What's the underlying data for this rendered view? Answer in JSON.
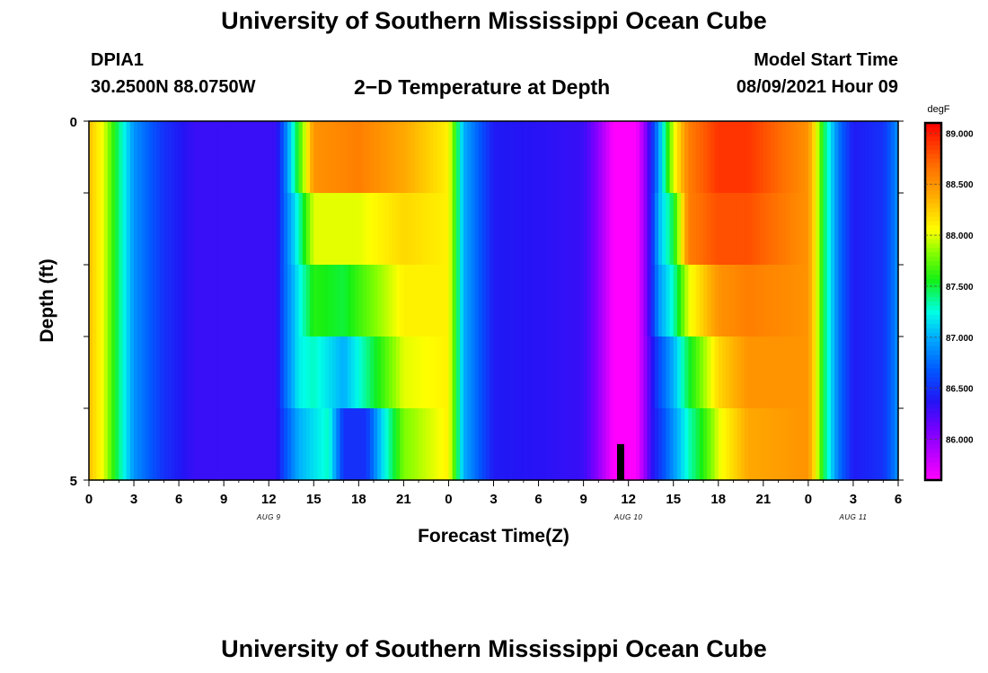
{
  "header": {
    "title": "University of Southern Mississippi Ocean Cube",
    "station_id": "DPIA1",
    "station_coords": "30.2500N  88.0750W",
    "product": "2−D Temperature at Depth",
    "model_start_label": "Model Start Time",
    "model_start_value": "08/09/2021 Hour 09"
  },
  "footer": {
    "title": "University of Southern Mississippi Ocean Cube"
  },
  "chart_data": {
    "type": "heatmap",
    "title": "2−D Temperature at Depth",
    "xlabel": "Forecast Time(Z)",
    "ylabel": "Depth (ft)",
    "x_ticks": [
      "0",
      "3",
      "6",
      "9",
      "12",
      "15",
      "18",
      "21",
      "0",
      "3",
      "6",
      "9",
      "12",
      "15",
      "18",
      "21",
      "0",
      "3",
      "6"
    ],
    "date_labels": [
      {
        "text": "AUG 9",
        "hour": 12
      },
      {
        "text": "AUG 10",
        "hour": 36
      },
      {
        "text": "AUG 11",
        "hour": 51
      }
    ],
    "xlim_hours": [
      0,
      54
    ],
    "y_ticks": [
      "0",
      "5"
    ],
    "ylim": [
      0,
      5
    ],
    "depth_levels": [
      0,
      1,
      2,
      3,
      4,
      5
    ],
    "colorbar": {
      "unit": "degF",
      "range": [
        85.6,
        89.1
      ],
      "labels": [
        "89.000",
        "88.500",
        "88.000",
        "87.500",
        "87.000",
        "86.500",
        "86.000"
      ],
      "label_values": [
        89.0,
        88.5,
        88.0,
        87.5,
        87.0,
        86.5,
        86.0
      ]
    },
    "temperature_keyframes_by_layer": [
      [
        [
          0,
          88.3
        ],
        [
          1,
          88.0
        ],
        [
          2,
          87.4
        ],
        [
          3,
          86.9
        ],
        [
          5,
          86.5
        ],
        [
          7,
          86.3
        ],
        [
          12.5,
          86.3
        ],
        [
          13,
          86.7
        ],
        [
          14,
          87.6
        ],
        [
          15,
          88.5
        ],
        [
          18,
          88.6
        ],
        [
          21,
          88.4
        ],
        [
          24,
          88.1
        ],
        [
          25,
          87.0
        ],
        [
          27,
          86.4
        ],
        [
          33,
          86.3
        ],
        [
          34,
          86.0
        ],
        [
          35,
          85.6
        ],
        [
          36.5,
          85.6
        ],
        [
          37,
          85.9
        ],
        [
          37.5,
          86.4
        ],
        [
          38,
          86.9
        ],
        [
          39,
          88.0
        ],
        [
          40,
          88.6
        ],
        [
          42,
          88.9
        ],
        [
          44,
          88.9
        ],
        [
          48,
          88.5
        ],
        [
          48.5,
          88.1
        ],
        [
          49,
          87.5
        ],
        [
          50,
          86.8
        ],
        [
          51,
          86.4
        ],
        [
          53,
          86.5
        ],
        [
          54,
          86.9
        ]
      ],
      [
        [
          0,
          88.3
        ],
        [
          1,
          88.0
        ],
        [
          2,
          87.4
        ],
        [
          3,
          86.9
        ],
        [
          5,
          86.5
        ],
        [
          7,
          86.3
        ],
        [
          12.5,
          86.3
        ],
        [
          13,
          86.7
        ],
        [
          14,
          87.3
        ],
        [
          15,
          88.0
        ],
        [
          18,
          88.0
        ],
        [
          21,
          88.2
        ],
        [
          24,
          88.1
        ],
        [
          25,
          87.0
        ],
        [
          27,
          86.4
        ],
        [
          33,
          86.3
        ],
        [
          34,
          86.0
        ],
        [
          35,
          85.6
        ],
        [
          36.5,
          85.6
        ],
        [
          37,
          85.9
        ],
        [
          37.5,
          86.4
        ],
        [
          38,
          87.0
        ],
        [
          39,
          87.5
        ],
        [
          40,
          88.6
        ],
        [
          42,
          88.8
        ],
        [
          44,
          88.8
        ],
        [
          48,
          88.5
        ],
        [
          48.5,
          88.1
        ],
        [
          49,
          87.5
        ],
        [
          50,
          86.8
        ],
        [
          51,
          86.4
        ],
        [
          53,
          86.5
        ],
        [
          54,
          86.9
        ]
      ],
      [
        [
          0,
          88.3
        ],
        [
          1,
          88.0
        ],
        [
          2,
          87.4
        ],
        [
          3,
          86.9
        ],
        [
          5,
          86.5
        ],
        [
          7,
          86.3
        ],
        [
          12.5,
          86.3
        ],
        [
          13,
          86.7
        ],
        [
          14,
          87.2
        ],
        [
          15,
          87.6
        ],
        [
          17,
          87.5
        ],
        [
          19,
          87.8
        ],
        [
          21,
          88.1
        ],
        [
          24,
          88.1
        ],
        [
          25,
          87.0
        ],
        [
          27,
          86.4
        ],
        [
          33,
          86.3
        ],
        [
          34,
          86.0
        ],
        [
          35,
          85.6
        ],
        [
          36.5,
          85.6
        ],
        [
          37,
          85.9
        ],
        [
          37.5,
          86.4
        ],
        [
          38,
          86.9
        ],
        [
          39,
          87.3
        ],
        [
          40,
          88.0
        ],
        [
          42,
          88.5
        ],
        [
          44,
          88.6
        ],
        [
          48,
          88.5
        ],
        [
          48.5,
          88.1
        ],
        [
          49,
          87.5
        ],
        [
          50,
          86.8
        ],
        [
          51,
          86.4
        ],
        [
          53,
          86.5
        ],
        [
          54,
          86.9
        ]
      ],
      [
        [
          0,
          88.3
        ],
        [
          1,
          88.0
        ],
        [
          2,
          87.4
        ],
        [
          3,
          86.9
        ],
        [
          5,
          86.5
        ],
        [
          7,
          86.3
        ],
        [
          12.5,
          86.3
        ],
        [
          13,
          86.7
        ],
        [
          14,
          87.2
        ],
        [
          15,
          87.3
        ],
        [
          17,
          87.0
        ],
        [
          19,
          87.5
        ],
        [
          21,
          88.0
        ],
        [
          24,
          88.1
        ],
        [
          25,
          87.0
        ],
        [
          27,
          86.4
        ],
        [
          33,
          86.3
        ],
        [
          34,
          86.0
        ],
        [
          35,
          85.6
        ],
        [
          36.5,
          85.6
        ],
        [
          37,
          85.9
        ],
        [
          37.5,
          86.3
        ],
        [
          38,
          86.6
        ],
        [
          39,
          87.0
        ],
        [
          40,
          87.5
        ],
        [
          42,
          88.2
        ],
        [
          44,
          88.5
        ],
        [
          48,
          88.5
        ],
        [
          48.5,
          88.1
        ],
        [
          49,
          87.5
        ],
        [
          50,
          86.8
        ],
        [
          51,
          86.4
        ],
        [
          53,
          86.5
        ],
        [
          54,
          86.9
        ]
      ],
      [
        [
          0,
          88.3
        ],
        [
          1,
          88.0
        ],
        [
          2,
          87.4
        ],
        [
          3,
          86.9
        ],
        [
          5,
          86.5
        ],
        [
          7,
          86.3
        ],
        [
          12.5,
          86.3
        ],
        [
          13,
          86.6
        ],
        [
          14,
          87.0
        ],
        [
          16,
          87.3
        ],
        [
          17,
          86.5
        ],
        [
          18.5,
          86.5
        ],
        [
          19.5,
          87.1
        ],
        [
          21,
          87.8
        ],
        [
          24,
          88.1
        ],
        [
          25,
          87.0
        ],
        [
          27,
          86.4
        ],
        [
          33,
          86.3
        ],
        [
          34,
          86.0
        ],
        [
          35,
          85.6
        ],
        [
          36.5,
          85.6
        ],
        [
          37,
          85.9
        ],
        [
          37.5,
          86.3
        ],
        [
          38,
          86.5
        ],
        [
          39,
          86.9
        ],
        [
          40,
          87.3
        ],
        [
          41,
          87.6
        ],
        [
          42,
          88.0
        ],
        [
          44,
          88.4
        ],
        [
          48,
          88.5
        ],
        [
          48.5,
          88.1
        ],
        [
          49,
          87.5
        ],
        [
          50,
          86.8
        ],
        [
          51,
          86.4
        ],
        [
          53,
          86.5
        ],
        [
          54,
          86.9
        ]
      ]
    ]
  }
}
